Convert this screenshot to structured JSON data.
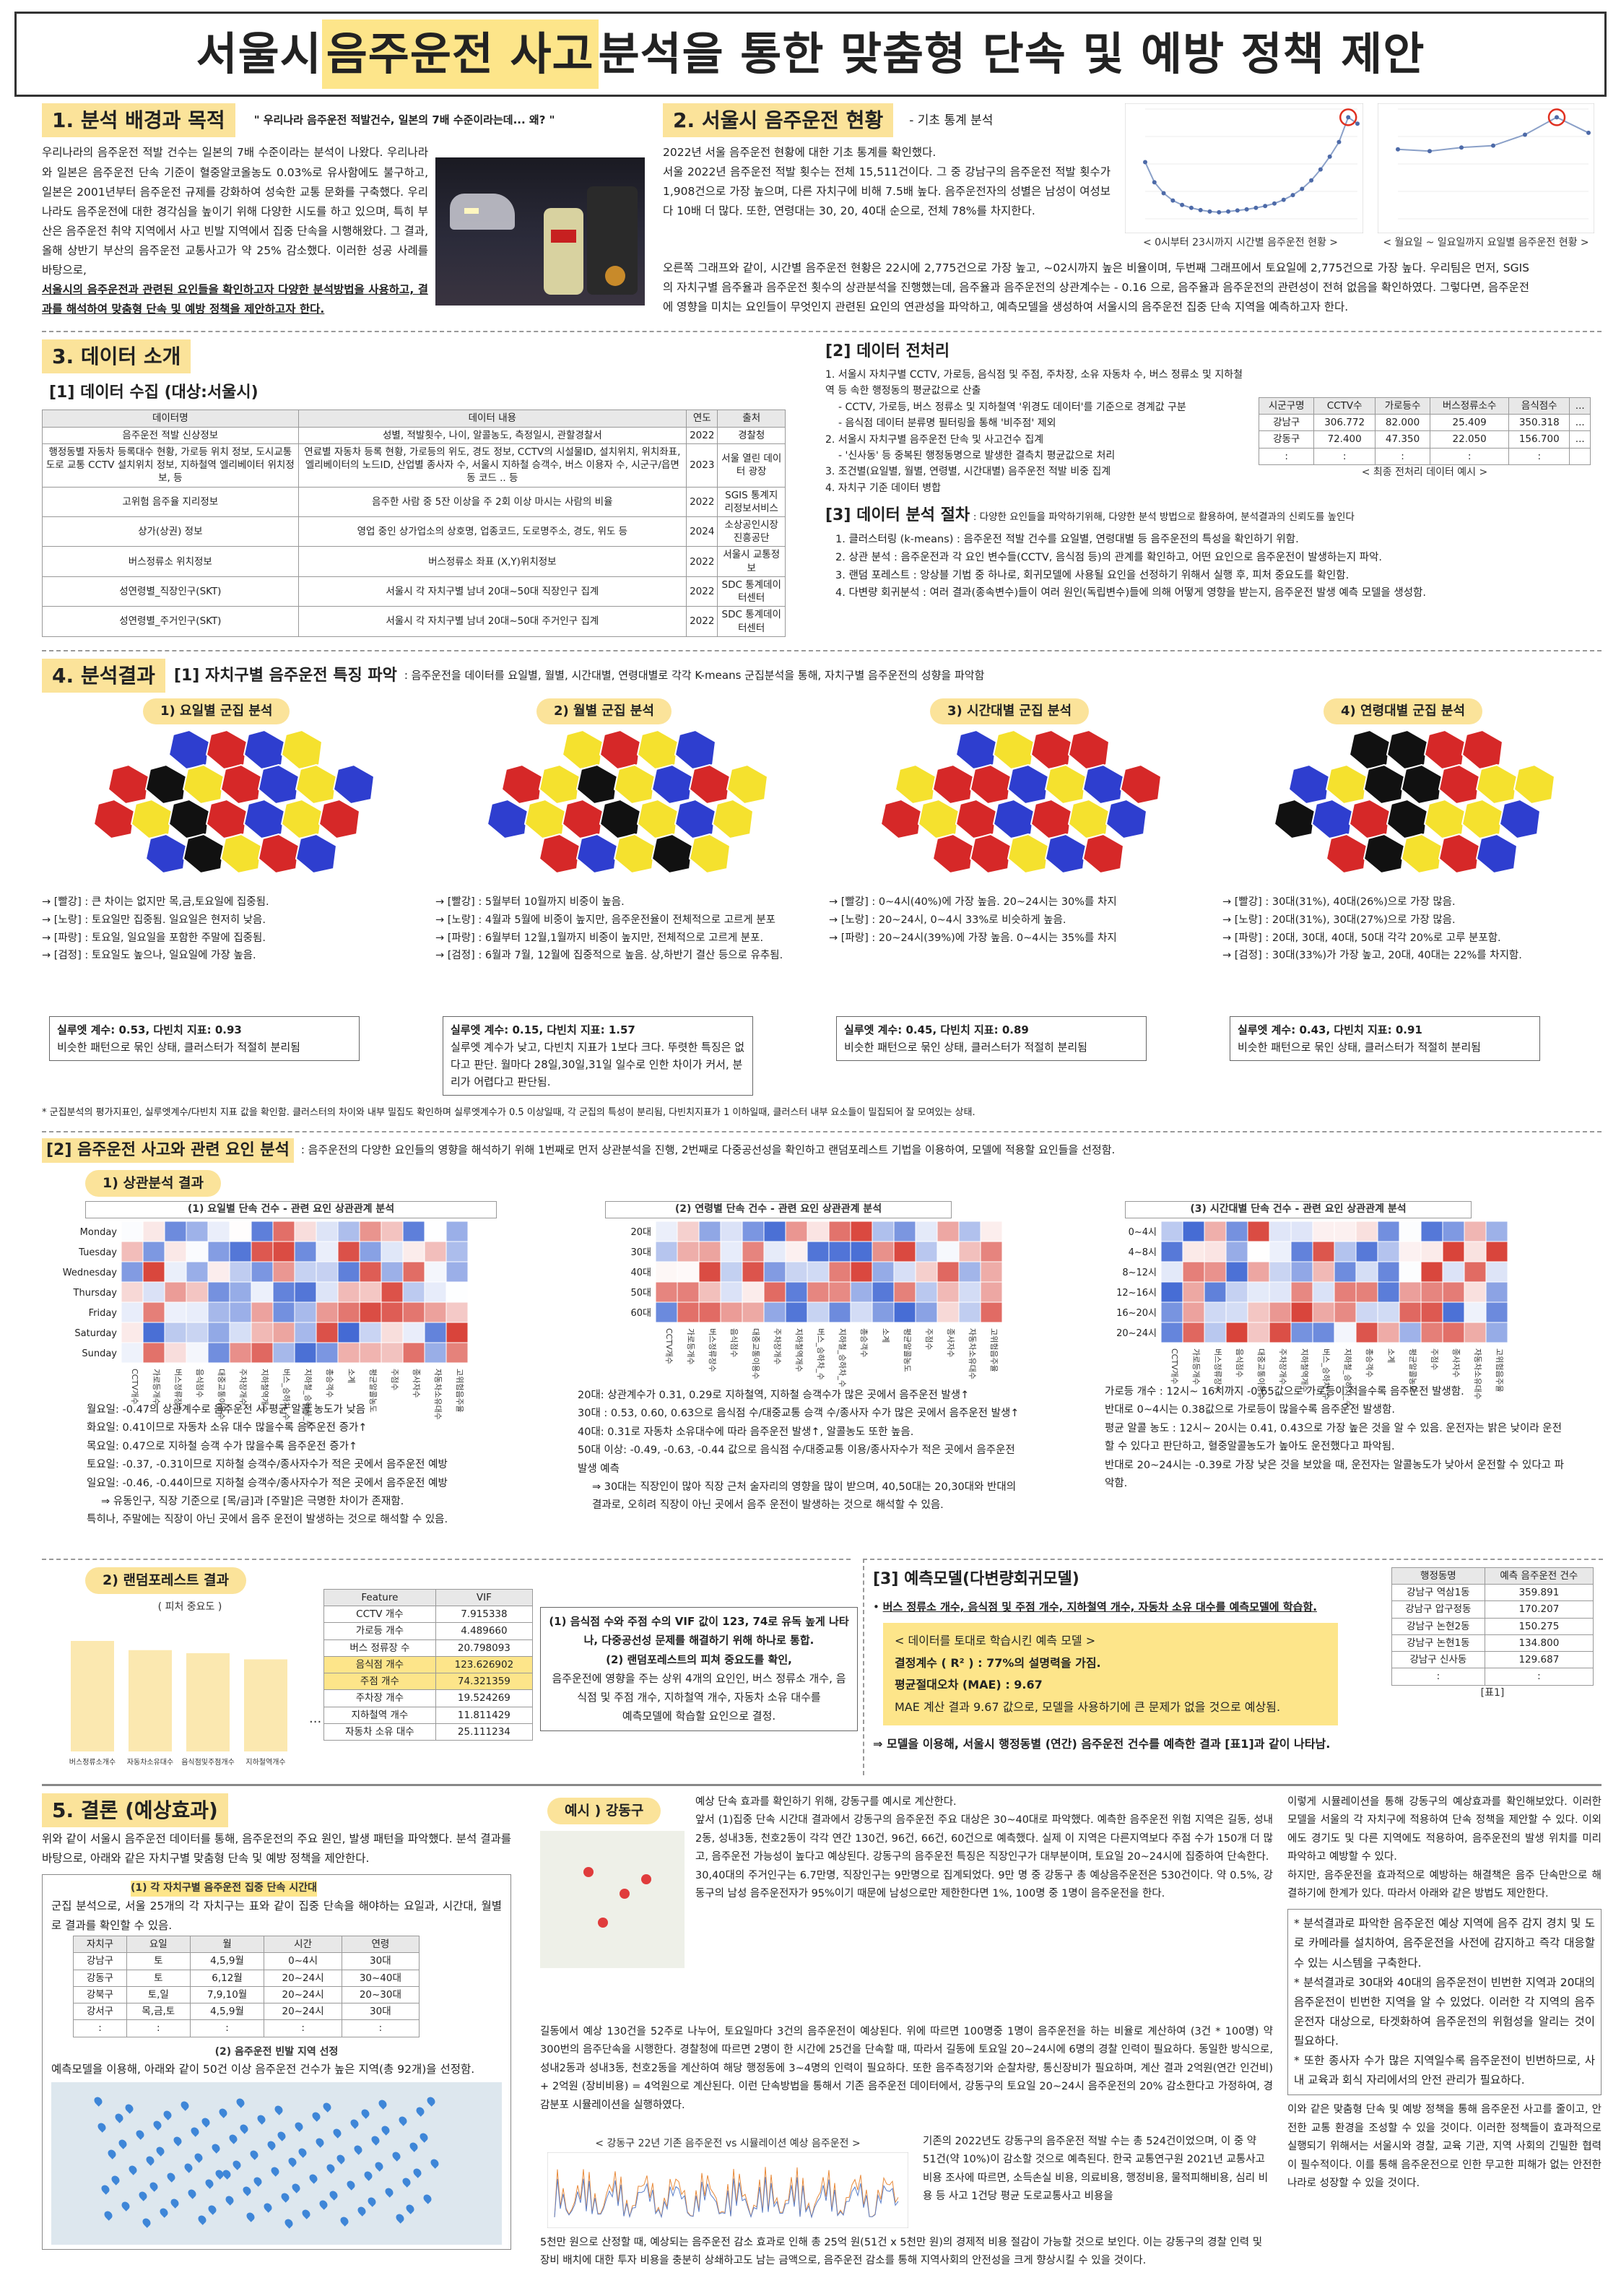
{
  "title": {
    "pre": "서울시 ",
    "hl": "음주운전 사고",
    "post": " 분석을 통한 맞춤형 단속 및 예방 정책 제안"
  },
  "s1": {
    "head": "1. 분석 배경과 목적",
    "quote": "\" 우리나라 음주운전 적발건수, 일본의 7배 수준이라는데... 왜? \"",
    "body": "우리나라의 음주운전 적발 건수는 일본의 7배 수준이라는 분석이 나왔다. 우리나라와 일본은 음주운전 단속 기준이 혈중알코올농도 0.03%로 유사함에도 불구하고, 일본은 2001년부터 음주운전 규제를 강화하여 성숙한 교통 문화를 구축했다. 우리나라도 음주운전에 대한 경각심을 높이기 위해 다양한 시도를 하고 있으며, 특히 부산은 음주운전 취약 지역에서 사고 빈발 지역에서 집중 단속을 시행해왔다. 그 결과, 올해 상반기 부산의 음주운전 교통사고가 약 25% 감소했다. 이러한 성공 사례를 바탕으로,",
    "body2": "서울시의 음주운전과 관련된 요인들을 확인하고자 다양한 분석방법을 사용하고, 결과를 해석하여 맞춤형 단속 및 예방 정책을 제안하고자 한다."
  },
  "s2": {
    "head": "2. 서울시 음주운전 현황",
    "sub": "-  기초 통계 분석",
    "l1": "2022년 서울 음주운전 현황에 대한 기초 통계를 확인했다.",
    "l2": "서울 2022년 음주운전 적발 횟수는 전체 15,511건이다. 그 중 강남구의 음주운전 적발 횟수가 1,908건으로 가장 높으며, 다른 자치구에 비해 7.5배 높다. 음주운전자의 성별은 남성이 여성보다 10배 더 많다. 또한, 연령대는 30, 20, 40대 순으로, 전체 78%를 차지한다.",
    "l3": "오른쪽 그래프와 같이, 시간별 음주운전 현황은 22시에 2,775건으로 가장 높고, ~02시까지 높은 비율이며, 두번째 그래프에서 토요일에 2,775건으로 가장 높다. 우리팀은 먼저, SGIS의 자치구별 음주율과 음주운전 횟수의 상관분석을 진행했는데, 음주율과 음주운전의 상관계수는 - 0.16 으로, 음주율과 음주운전의 관련성이 전혀 없음을 확인하였다. 그렇다면, 음주운전에 영향을 미치는 요인들이 무엇인지 관련된 요인의 연관성을 파악하고, 예측모델을 생성하여 서울시의 음주운전 집중 단속 지역을 예측하고자 한다.",
    "cap1": "< 0시부터 23시까지 시간별 음주운전 현황 >",
    "cap2": "< 월요일 ~ 일요일까지 요일별 음주운전 현황 >",
    "chart1": [
      1550,
      1000,
      700,
      500,
      380,
      300,
      240,
      200,
      180,
      200,
      230,
      260,
      300,
      350,
      420,
      520,
      650,
      820,
      1050,
      1350,
      1700,
      2100,
      2775,
      2600
    ],
    "chart2": [
      1900,
      1850,
      1950,
      2000,
      2300,
      2775,
      2350
    ]
  },
  "s3": {
    "head": "3. 데이터 소개",
    "sub1": "[1] 데이터 수집 (대상:서울시)",
    "cols": [
      "데이터명",
      "데이터 내용",
      "연도",
      "출처"
    ],
    "rows": [
      [
        "음주운전 적발 신상정보",
        "성별, 적발횟수, 나이, 알콜농도, 측정일시, 관할경찰서",
        "2022",
        "경찰청"
      ],
      [
        "행정동별 자동차 등록대수 현황, 가로등 위치 정보, 도시교통도로 교통 CCTV 설치위치 정보, 지하철역 엘리베이터 위치정보, 등",
        "연료별 자동차 등록 현황, 가로등의 위도, 경도 정보, CCTV의 시설물ID, 설치위치, 위치좌표, 엘리베이터의 노드ID, 산업별 종사자 수, 서울시 지하철 승객수, 버스 이용자 수, 시군구/읍면동 코드 .. 등",
        "2023",
        "서울 열린 데이터 광장"
      ],
      [
        "고위험 음주율 지리정보",
        "음주한 사람 중 5잔 이상을 주 2회 이상 마시는 사람의 비율",
        "2022",
        "SGIS 통계지리정보서비스"
      ],
      [
        "상가(상권) 정보",
        "영업 중인 상가업소의 상호명, 업종코드, 도로명주소, 경도, 위도 등",
        "2024",
        "소상공인시장진흥공단"
      ],
      [
        "버스정류소 위치정보",
        "버스정류소 좌표 (X,Y)위치정보",
        "2022",
        "서울시 교통정보"
      ],
      [
        "성연령별_직장인구(SKT)",
        "서울시 각 자치구별 남녀 20대~50대 직장인구 집계",
        "2022",
        "SDC 통계데이터센터"
      ],
      [
        "성연령별_주거인구(SKT)",
        "서울시 각 자치구별 남녀 20대~50대 주거인구 집계",
        "2022",
        "SDC 통계데이터센터"
      ]
    ],
    "sub2": "[2] 데이터 전처리",
    "pre": [
      "1. 서울시 자치구별 CCTV, 가로등, 음식점 및 주점, 주차장, 소유 자동차 수, 버스 정류소 및 지하철 역 등 속한 행정동의 평균값으로 산출",
      "- CCTV, 가로등, 버스 정류소 및 지하철역 '위경도 데이터'를 기준으로 경계값 구분",
      "- 음식점 데이터 분류명 필터링을 통해 '비주점' 제외",
      "2. 서울시 자치구별 음주운전 단속 및 사고건수 집계",
      "- '신사동' 등 중복된 행정동명으로 발생한 결측치 평균값으로 처리",
      "3. 조건별(요일별, 월별, 연령별, 시간대별) 음주운전 적발 비중 집계",
      "4. 자치구 기준 데이터 병합"
    ],
    "pcols": [
      "시군구명",
      "CCTV수",
      "가로등수",
      "버스정류소수",
      "음식점수",
      "..."
    ],
    "prows": [
      [
        "강남구",
        "306.772",
        "82.000",
        "25.409",
        "350.318",
        "..."
      ],
      [
        "강동구",
        "72.400",
        "47.350",
        "22.050",
        "156.700",
        "..."
      ],
      [
        ":",
        ":",
        ":",
        ":",
        ":",
        ""
      ]
    ],
    "pcap": "< 최종 전처리 데이터 예시 >",
    "sub3": "[3] 데이터 분석 절차",
    "sub3d": ": 다양한 요인들을 파악하기위해, 다양한 분석 방법으로 활용하여, 분석결과의 신뢰도를 높인다",
    "steps": [
      "1. 클러스터링 (k-means) : 음주운전 적발 건수를 요일별, 연령대별 등 음주운전의 특성을 확인하기 위함.",
      "2. 상관 분석 : 음주운전과 각 요인 변수들(CCTV, 음식점 등)의 관계를 확인하고, 어떤 요인으로 음주운전이 발생하는지 파악.",
      "3. 랜덤 포레스트 : 앙상블 기법 중 하나로, 회귀모델에 사용될 요인을 선정하기 위해서 실행 후, 피처 중요도를 확인함.",
      "4. 다변량 회귀분석 : 여러 결과(종속변수)들이 여러 원인(독립변수)들에 의해 어떻게 영향을 받는지, 음주운전 발생 예측 모델을 생성함."
    ]
  },
  "s4": {
    "head": "4. 분석결과",
    "sub1": "[1] 자치구별 음주운전 특징 파악",
    "sub1d": ": 음주운전을 데이터를 요일별, 월별, 시간대별, 연령대별로 각각 K-means 군집분석을 통해, 자치구별 음주운전의 성향을 파악함",
    "maps": [
      {
        "t": "1) 요일별 군집 분석",
        "lines": [
          "→ [빨강] : 큰 차이는 없지만 목,금,토요일에 집중됨.",
          "→ [노랑] : 토요일만 집중됨. 일요일은 현저히 낮음.",
          "→ [파랑] : 토요일, 일요일을 포함한 주말에 집중됨.",
          "→ [검정] : 토요일도 높으나, 일요일에 가장 높음."
        ],
        "score": "실루엣 계수: 0.53, 다빈치 지표: 0.93",
        "note": "비슷한 패턴으로 묶인 상태, 클러스터가 적절히 분리됨"
      },
      {
        "t": "2) 월별 군집 분석",
        "lines": [
          "→ [빨강] : 5월부터 10월까지 비중이 높음.",
          "→ [노랑] : 4월과 5월에 비중이 높지만, 음주운전율이 전체적으로 고르게 분포",
          "→ [파랑] : 6월부터 12월,1월까지 비중이 높지만, 전체적으로 고르게 분포.",
          "→ [검정] : 6월과 7월, 12월에 집중적으로 높음. 상,하반기 결산 등으로 유추됨."
        ],
        "score": "실루엣 계수: 0.15, 다빈치 지표: 1.57",
        "note": "실루엣 계수가 낮고, 다빈치 지표가 1보다 크다. 뚜렷한 특징은 없다고 판단. 월마다 28일,30일,31일 일수로 인한 차이가 커서, 분리가 어렵다고 판단됨."
      },
      {
        "t": "3) 시간대별 군집 분석",
        "lines": [
          "→ [빨강] : 0~4시(40%)에 가장 높음. 20~24시는 30%를 차지",
          "→ [노랑] : 20~24시, 0~4시 33%로 비슷하게 높음.",
          "→ [파랑] : 20~24시(39%)에 가장 높음. 0~4시는 35%를 차지"
        ],
        "score": "실루엣 계수: 0.45, 다빈치 지표: 0.89",
        "note": "비슷한 패턴으로 묶인 상태, 클러스터가 적절히 분리됨"
      },
      {
        "t": "4) 연령대별 군집 분석",
        "lines": [
          "→ [빨강] : 30대(31%), 40대(26%)으로 가장 많음.",
          "→ [노랑] : 20대(31%), 30대(27%)으로 가장 많음.",
          "→ [파랑] : 20대, 30대, 40대, 50대 각각 20%로 고루 분포함.",
          "→ [검정] : 30대(33%)가 가장 높고, 20대, 40대는 22%를 차지함."
        ],
        "score": "실루엣 계수: 0.43, 다빈치 지표: 0.91",
        "note": "비슷한 패턴으로 묶인 상태, 클러스터가 적절히 분리됨"
      }
    ],
    "clnote": "* 군집분석의 평가지표인, 실루엣계수/다빈치 지표 값을 확인함. 클러스터의 차이와 내부 밀집도 확인하며 실루엣계수가 0.5 이상일때, 각 군집의 특성이 분리됨, 다빈치지표가 1 이하일때, 클러스터 내부 요소들이 밀집되어 잘 모여있는 상태.",
    "sub2": "[2] 음주운전 사고와 관련 요인 분석",
    "sub2d": ": 음주운전의 다양한 요인들의 영향을 해석하기 위해 1번째로 먼저 상관분석을 진행, 2번째로 다중공선성을 확인하고 랜덤포레스트 기법을 이용하여, 모델에 적용할 요인들을 선정함.",
    "corr": "1) 상관분석 결과",
    "h1": {
      "t": "(1) 요일별 단속 건수 - 관련 요인 상관관계 분석",
      "rows": [
        "Monday",
        "Tuesday",
        "Wednesday",
        "Thursday",
        "Friday",
        "Saturday",
        "Sunday"
      ]
    },
    "h2": {
      "t": "(2) 연령별 단속 건수 - 관련 요인 상관관계 분석",
      "rows": [
        "20대",
        "30대",
        "40대",
        "50대",
        "60대"
      ]
    },
    "h3": {
      "t": "(3) 시간대별 단속 건수 - 관련 요인 상관관계 분석",
      "rows": [
        "0~4시",
        "4~8시",
        "8~12시",
        "12~16시",
        "16~20시",
        "20~24시"
      ]
    },
    "xlabels": [
      "CCTV개수",
      "가로등개수",
      "버스정류장수",
      "음식점수",
      "대중교통이용수",
      "주차장개수",
      "지하철역개수",
      "버스_승하차_수",
      "지하철_승하차_수",
      "총승객수",
      "소계",
      "평균알콜농도",
      "주점수",
      "종사자수",
      "자동차소유대수",
      "고위험음주율"
    ],
    "c1": [
      "월요일: -0.47의 상관계수로 음주운전 시 평균 알콜 농도가 낮음",
      "화요일: 0.41이므로 자동차 소유 대수 많을수록 음주운전 증가↑",
      "목요일: 0.47으로 지하철 승객 수가 많을수록 음주운전 증가↑",
      "토요일: -0.37, -0.31이므로 지하철 승객수/종사자수가 적은 곳에서 음주운전 예방",
      "일요일: -0.46, -0.44이므로 지하철 승객수/종사자수가 적은 곳에서 음주운전 예방",
      "⇒ 유동인구, 직장 기준으로 [목/금]과 [주말]은 극명한 차이가 존재함.",
      "특히나, 주말에는 직장이 아닌 곳에서 음주 운전이 발생하는 것으로 해석할 수 있음."
    ],
    "c2": [
      "20대: 상관계수가 0.31, 0.29로 지하철역, 지하철 승객수가 많은 곳에서 음주운전 발생↑",
      "30대 : 0.53, 0.60, 0.63으로 음식점 수/대중교통 승객 수/종사자 수가 많은 곳에서 음주운전 발생↑",
      "40대: 0.31로 자동차 소유대수에 따라 음주운전 발생↑, 알콜농도 또한 높음.",
      "50대 이상: -0.49, -0.63, -0.44 값으로 음식점 수/대중교통 이용/종사자수가 적은 곳에서 음주운전 발생 예측",
      "⇒ 30대는 직장인이 많아 직장 근처 술자리의 영향을 많이 받으며, 40,50대는 20,30대와 반대의 결과로, 오히려 직장이 아닌 곳에서 음주 운전이 발생하는 것으로 해석할 수 있음."
    ],
    "c3": [
      "가로등 개수 : 12시~ 16시까지 -0.65값으로 가로등이 적을수록 음주운전 발생함.",
      "반대로 0~4시는 0.38값으로 가로등이 많을수록 음주운전 발생함.",
      "평균 알콜 농도 : 12시~ 20시는 0.41, 0.43으로 가장 높은 것을 알 수 있음. 운전자는 밝은 낮이라 운전할 수 있다고 판단하고, 혈중알콜농도가 높아도 운전했다고 파악됨.",
      "반대로 20~24시는 -0.39로 가장 낮은 것을 보았을 때, 운전자는 알콜농도가 낮아서 운전할 수 있다고 파악함."
    ],
    "rf": "2) 랜덤포레스트 결과",
    "rfcap": "( 피처 중요도 )",
    "rfcats": [
      "버스정류소개수",
      "자동차소유대수",
      "음식점및주점개수",
      "지하철역개수"
    ],
    "rfvals": [
      0.36,
      0.33,
      0.32,
      0.3
    ],
    "vif": {
      "cols": [
        "Feature",
        "VIF"
      ],
      "rows": [
        [
          "CCTV 개수",
          "7.915338"
        ],
        [
          "가로등 개수",
          "4.489660"
        ],
        [
          "버스 정류장 수",
          "20.798093"
        ],
        [
          "음식점 개수",
          "123.626902"
        ],
        [
          "주점 개수",
          "74.321359"
        ],
        [
          "주차장 개수",
          "19.524269"
        ],
        [
          "지하철역 개수",
          "11.811429"
        ],
        [
          "자동차 소유 대수",
          "25.111234"
        ]
      ]
    },
    "rfbox": [
      "(1) 음식점 수와 주점 수의 VIF 값이 123, 74로 유독 높게 나타나, 다중공선성 문제를 해결하기 위해 하나로 통합.",
      "(2) 랜덤포레스트의 피쳐 중요도를 확인,",
      "음주운전에 영향을 주는 상위 4개의 요인인, 버스 정류소 개수, 음식점 및 주점 개수, 지하철역 개수, 자동차 소유 대수를",
      "예측모델에 학습할 요인으로 결정."
    ],
    "pm": "[3] 예측모델(다변량회귀모델)",
    "pm1": "버스 정류소 개수, 음식점 및 주점 개수, 지하철역 개수, 자동차 소유 대수를 예측모델에 학습함.",
    "pmbox": [
      "< 데이터를 토대로 학습시킨 예측 모델 >",
      "결정계수 ( R² ) : 77%의 설명력을 가짐.",
      "평균절대오차 (MAE) : 9.67",
      "MAE 계산 결과 9.67 값으로, 모델을 사용하기에 큰 문제가 없을 것으로 예상됨."
    ],
    "pm2": "⇒ 모델을 이용해, 서울시 행정동별 (연간) 음주운전 건수를 예측한 결과 [표1]과 같이 나타남.",
    "pt": {
      "cols": [
        "행정동명",
        "예측 음주운전 건수"
      ],
      "rows": [
        [
          "강남구 역삼1동",
          "359.891"
        ],
        [
          "강남구 압구정동",
          "170.207"
        ],
        [
          "강남구 논현2동",
          "150.275"
        ],
        [
          "강남구 논현1동",
          "134.800"
        ],
        [
          "강남구 신사동",
          "129.687"
        ],
        [
          ":",
          ":"
        ]
      ],
      "cap": "[표1]"
    }
  },
  "s5": {
    "head": "5. 결론 (예상효과)",
    "intro": "위와 같이 서울시 음주운전 데이터를 통해, 음주운전의 주요 원인, 발생 패턴을 파악했다. 분석 결과를 바탕으로, 아래와 같은 자치구별 맞춤형 단속 및 예방 정책을 제안한다.",
    "b1t": "(1) 각 자치구별 음주운전 집중 단속 시간대",
    "b1d": "군집 분석으로, 서울 25개의 각 자치구는 표와 같이 집중 단속을 해야하는 요일과, 시간대, 월별로 결과를 확인할 수 있음.",
    "tcols": [
      "자치구",
      "요일",
      "월",
      "시간",
      "연령"
    ],
    "trows": [
      [
        "강남구",
        "토",
        "4,5,9월",
        "0~4시",
        "30대"
      ],
      [
        "강동구",
        "토",
        "6,12월",
        "20~24시",
        "30~40대"
      ],
      [
        "강북구",
        "토,일",
        "7,9,10월",
        "20~24시",
        "20~30대"
      ],
      [
        "강서구",
        "목,금,토",
        "4,5,9월",
        "20~24시",
        "30대"
      ],
      [
        ":",
        ":",
        ":",
        ":",
        ":"
      ]
    ],
    "b2t": "(2) 음주운전 빈발 지역 선정",
    "b2d": "예측모델을 이용해, 아래와 같이 50건 이상 음주운전 건수가 높은 지역(총 92개)을 선정함.",
    "ex": "예시 ) 강동구",
    "m1": "예상 단속 효과를 확인하기 위해, 강동구를 예시로 계산한다.",
    "m2": "앞서 (1)집중 단속 시간대 결과에서 강동구의 음주운전 주요 대상은 30~40대로 파악했다. 예측한 음주운전 위험 지역은 길동, 성내2동, 성내3동, 천호2동이 각각 연간 130건, 96건, 66건, 60건으로 예측했다. 실제 이 지역은 다른지역보다 주점 수가 150개 더 많고, 음주운전 가능성이 높다고 예상된다. 강동구의 음주운전 특징은 직장인구가 대부분이며, 토요일 20~24시에 집중하여 단속한다.",
    "m3": "30,40대의 주거인구는 6.7만명, 직장인구는 9만명으로 집계되었다. 9만 명 중 강동구 총 예상음주운전은 530건이다. 약 0.5%, 강동구의 남성 음주운전자가 95%이기 때문에 남성으로만 제한한다면 1%, 100명 중 1명이 음주운전을 한다.",
    "m4": "길동에서 예상 130건을 52주로 나누어, 토요일마다 3건의 음주운전이 예상된다. 위에 따르면 100명중 1명이 음주운전을 하는 비율로 계산하여 (3건 * 100명) 약 300번의 음주단속을 시행한다. 경찰청에 따르면 2명이 한 시간에 25건을 단속할 때, 따라서 길동에 토요일 20~24시에 6명의 경찰 인력이 필요하다. 동일한 방식으로, 성내2동과 성내3동, 천호2동을 계산하여 해당 행정동에 3~4명의 인력이 필요하다. 또한 음주측정기와 순찰차량, 통신장비가 필요하며, 계산 결과 2억원(연간 인건비) + 2억원 (장비비용) = 4억원으로 계산된다. 이런 단속방법을 통해서 기존 음주운전 데이터에서, 강동구의 토요일 20~24시 음주운전의 20% 감소한다고 가정하여, 경감분포 시뮬레이션을 실행하였다.",
    "simcap": "< 강동구 22년 기존 음주운전 vs 시뮬레이션 예상 음주운전 >",
    "m5": "기존의 2022년도 강동구의 음주운전 적발 수는 총 524건이었으며, 이 중 약 51건(약 10%)이 감소할 것으로 예측된다. 한국 교통연구원 2021년 교통사고비용 조사에 따르면, 소득손실 비용, 의료비용, 행정비용, 물적피해비용, 심리 비용 등 사고 1건당 평균 도로교통사고 비용을",
    "m6": "5천만 원으로 산정할 때, 예상되는 음주운전 감소 효과로 인해 총 25억 원(51건 x 5천만 원)의 경제적 비용 절감이 가능할 것으로 보인다. 이는 강동구의 경찰 인력 및 장비 배치에 대한 투자 비용을 충분히 상쇄하고도 남는 금액으로, 음주운전 감소를 통해 지역사회의 안전성을 크게 향상시킬 수 있을 것이다.",
    "r1": "이렇게 시뮬레이션을 통해 강동구의 예상효과를 확인해보았다. 이러한 모델을 서울의 각 자치구에 적용하여 단속 정책을 제안할 수 있다. 이외에도 경기도 및 다른 지역에도 적용하여, 음주운전의 발생 위치를 미리 파악하고 예방할 수 있다.",
    "r2": "하지만, 음주운전을 효과적으로 예방하는 해결책은 음주 단속만으로 해결하기에 한계가 있다. 따라서 아래와 같은 방법도 제안한다.",
    "rb": [
      "* 분석결과로 파악한 음주운전 예상 지역에 음주 감지 경치 및 도로 카메라를 설치하여, 음주운전을 사전에 감지하고 즉각 대응할 수 있는 시스템을 구축한다.",
      "* 분석결과로 30대와 40대의 음주운전이 빈번한 지역과 20대의 음주운전이 빈번한 지역을 알 수 있었다. 이러한 각 지역의 음주운전자 대상으로, 타겟화하여 음주운전의 위험성을 알리는 것이 필요하다.",
      "* 또한 종사자 수가 많은 지역일수록 음주운전이 빈번하므로, 사내 교육과 회식 자리에서의 안전 관리가 필요하다."
    ],
    "r3": "이와 같은 맞춤형 단속 및 예방 정책을 통해 음주운전 사고를 줄이고, 안전한 교통 환경을 조성할 수 있을 것이다. 이러한 정책들이 효과적으로 실행되기 위해서는 서울시와 경찰, 교육 기관, 지역 사회의 긴밀한 협력이 필수적이다. 이를 통해 음주운전으로 인한 무고한 피해가 없는 안전한 나라로 성장할 수 있을 것이다."
  }
}
